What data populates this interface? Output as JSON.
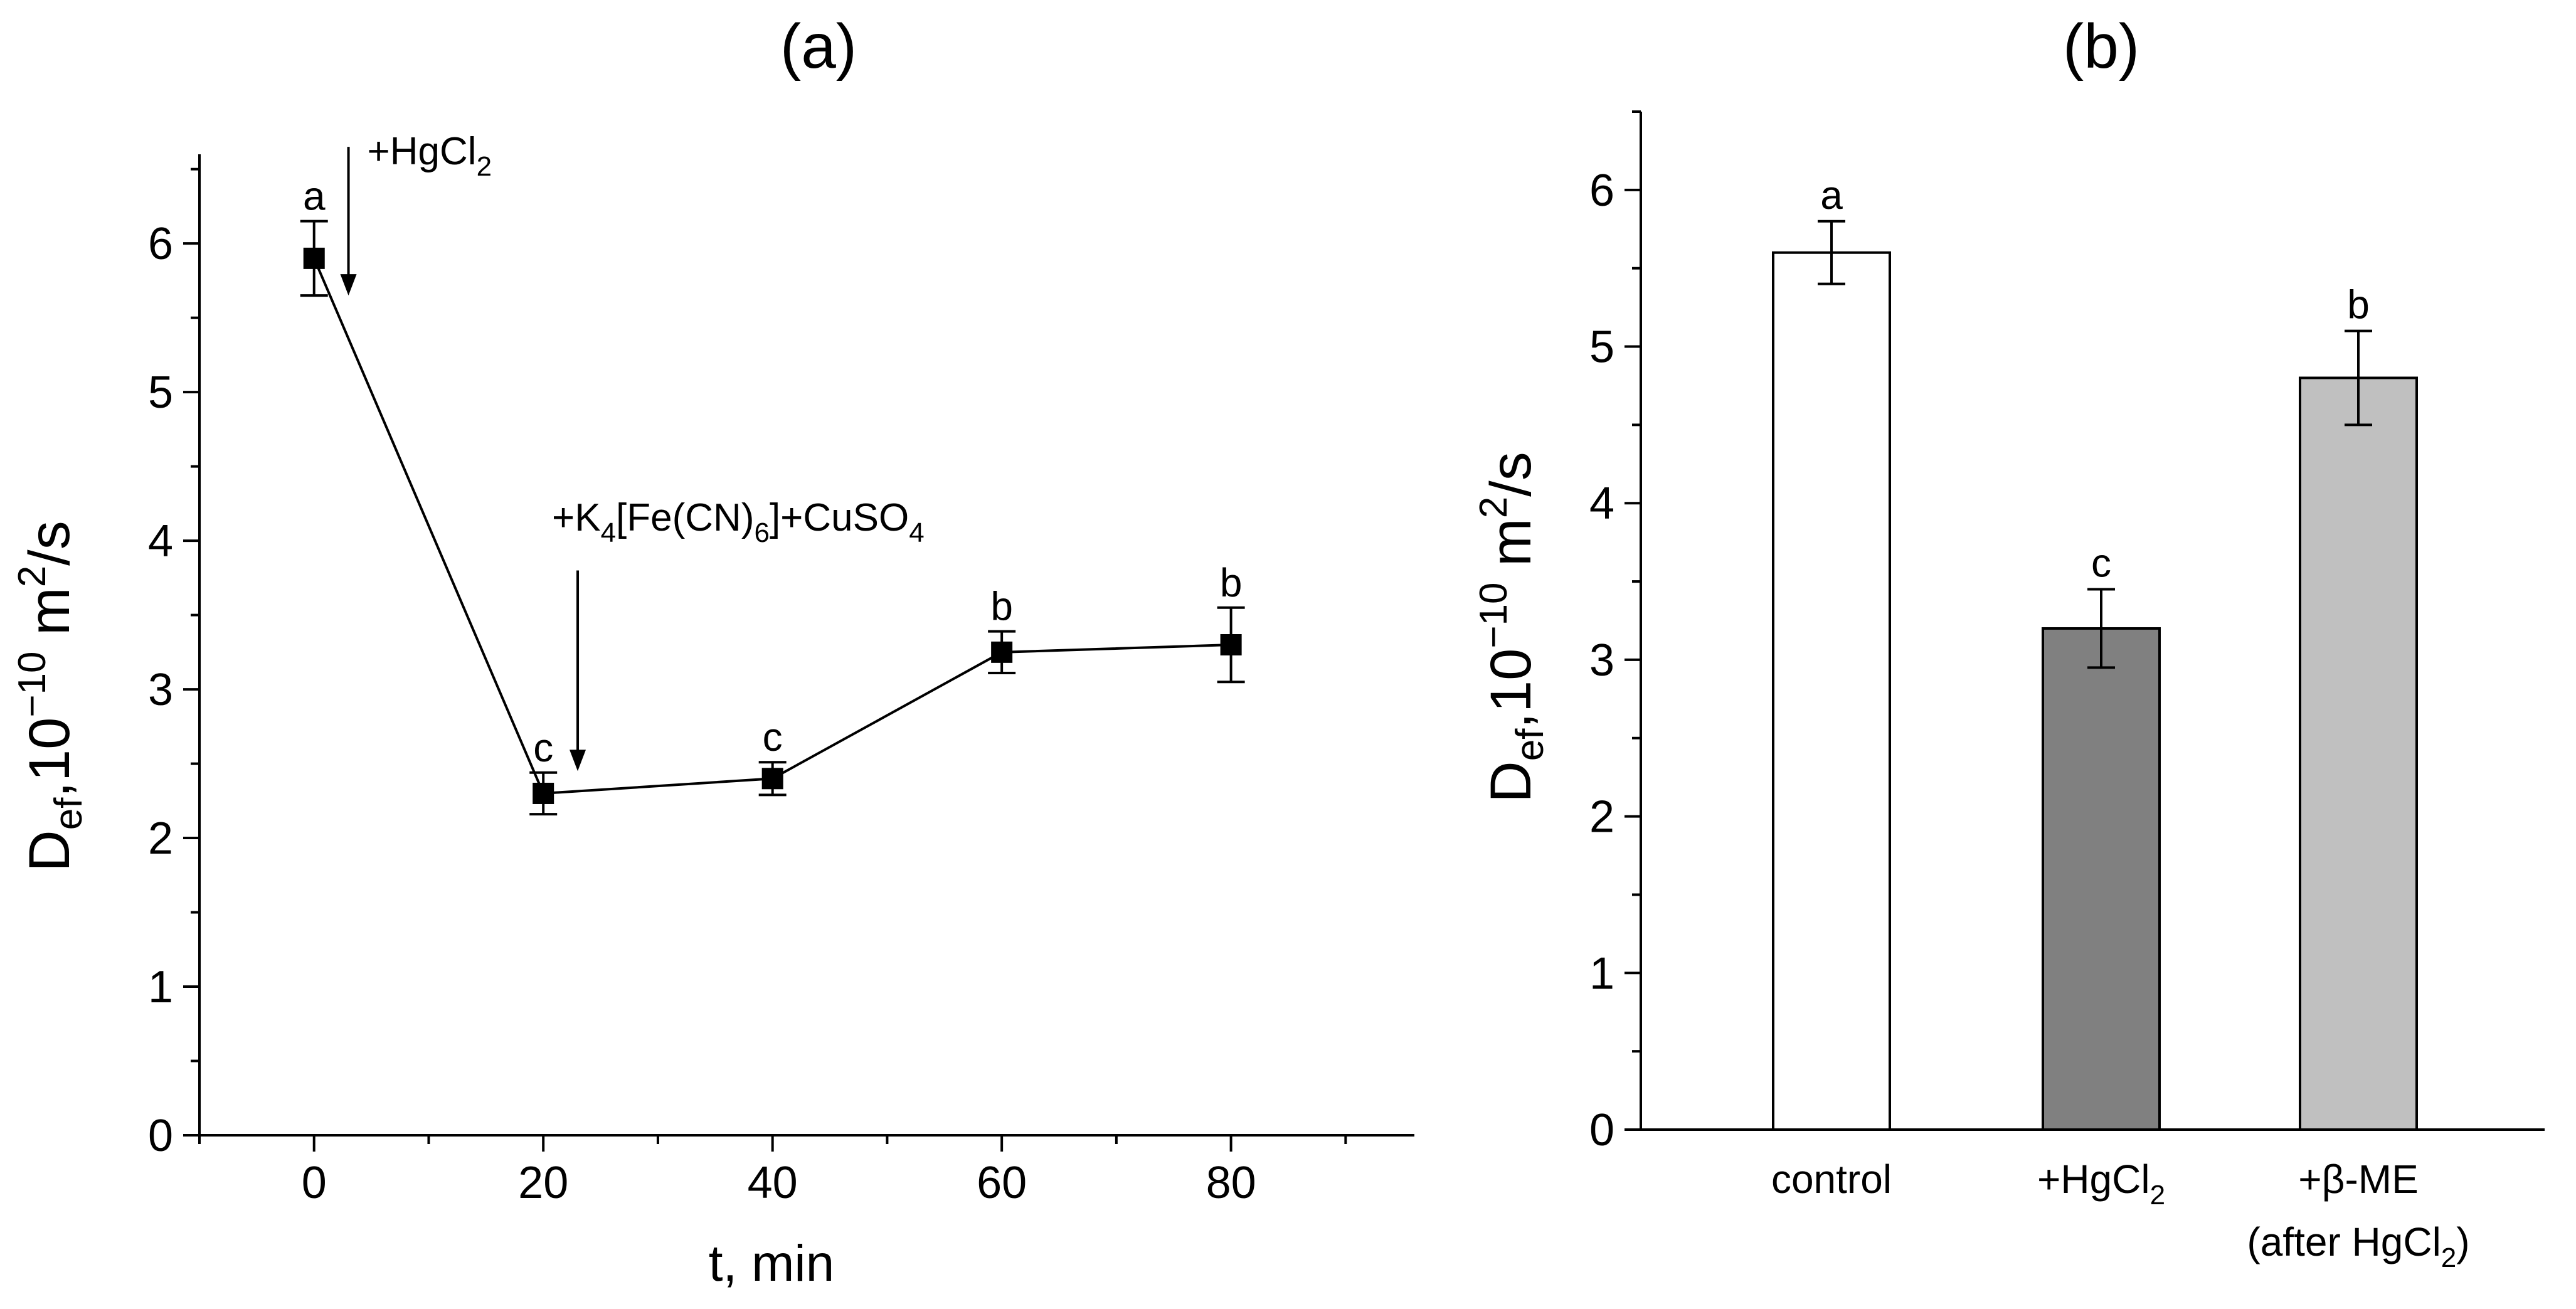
{
  "chart_data": [
    {
      "type": "line",
      "panel_label": "(a)",
      "ylabel_main": "D",
      "ylabel_sub": "ef",
      "ylabel_mid": ",10",
      "ylabel_exp": "−10",
      "ylabel_unit": " m",
      "ylabel_unit_exp": "2",
      "ylabel_end": "/s",
      "xlabel": "t, min",
      "xlim": [
        -10,
        96
      ],
      "ylim": [
        0,
        6.6
      ],
      "xticks": [
        "0",
        "20",
        "40",
        "60",
        "80"
      ],
      "yticks": [
        "0",
        "1",
        "2",
        "3",
        "4",
        "5",
        "6"
      ],
      "grid": false,
      "points": [
        {
          "x": 0,
          "y": 5.9,
          "err": 0.25,
          "sig": "a"
        },
        {
          "x": 20,
          "y": 2.3,
          "err": 0.14,
          "sig": "c"
        },
        {
          "x": 40,
          "y": 2.4,
          "err": 0.11,
          "sig": "c"
        },
        {
          "x": 60,
          "y": 3.25,
          "err": 0.14,
          "sig": "b"
        },
        {
          "x": 80,
          "y": 3.3,
          "err": 0.25,
          "sig": "b"
        }
      ],
      "annotations": [
        {
          "text_pre": "+HgCl",
          "sub1": "2",
          "x": 3,
          "y_from": 6.65,
          "y_to": 5.65
        },
        {
          "text_pre": "+K",
          "sub1": "4",
          "text_mid": "[Fe(CN)",
          "sub2": "6",
          "text_post": "]+CuSO",
          "sub3": "4",
          "x": 23,
          "y_from": 3.8,
          "y_to": 2.45
        }
      ]
    },
    {
      "type": "bar",
      "panel_label": "(b)",
      "ylabel_main": "D",
      "ylabel_sub": "ef",
      "ylabel_mid": ",10",
      "ylabel_exp": "−10",
      "ylabel_unit": " m",
      "ylabel_unit_exp": "2",
      "ylabel_end": "/s",
      "ylim": [
        0,
        6.5
      ],
      "yticks": [
        "0",
        "1",
        "2",
        "3",
        "4",
        "5",
        "6"
      ],
      "grid": false,
      "categories": [
        {
          "line1": "control",
          "line2": ""
        },
        {
          "line1": "+HgCl",
          "line1_sub": "2",
          "line2": ""
        },
        {
          "line1": "+β-ME",
          "line2": "(after HgCl",
          "line2_sub": "2",
          "line2_end": ")"
        }
      ],
      "values": [
        5.6,
        3.2,
        4.8
      ],
      "errors": [
        0.2,
        0.25,
        0.3
      ],
      "sig": [
        "a",
        "c",
        "b"
      ],
      "colors": [
        "#ffffff",
        "#808080",
        "#c0c0c0"
      ]
    }
  ]
}
